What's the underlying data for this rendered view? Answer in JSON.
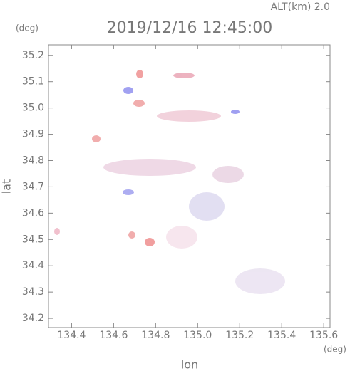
{
  "chart_data": {
    "type": "map",
    "title": "2019/12/16 12:45:00",
    "subtitle": "ALT(km) 2.0",
    "x_label": "lon",
    "y_label": "lat",
    "x_unit": "(deg)",
    "y_unit": "(deg)",
    "xlim": [
      134.29,
      135.63
    ],
    "ylim": [
      34.165,
      35.24
    ],
    "xticks": [
      134.4,
      134.6,
      134.8,
      {
        "value": 135,
        "label": "135.0"
      },
      135.2,
      135.4,
      135.6
    ],
    "yticks": [
      34.2,
      34.3,
      34.4,
      34.5,
      34.6,
      34.7,
      34.8,
      34.9,
      {
        "value": 35,
        "label": "35.0"
      },
      35.1,
      35.2
    ]
  }
}
